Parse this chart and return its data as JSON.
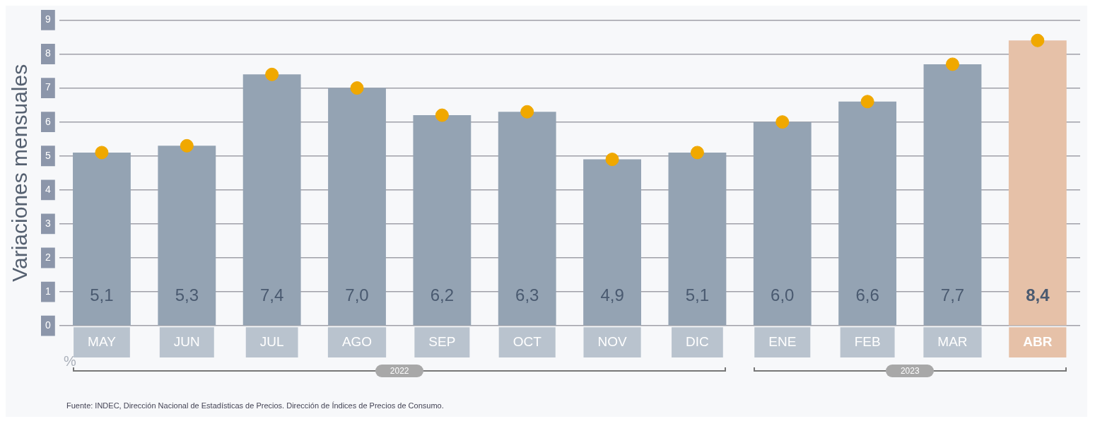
{
  "chart_data": {
    "type": "bar",
    "ylabel": "Variaciones mensuales",
    "categories": [
      "MAY",
      "JUN",
      "JUL",
      "AGO",
      "SEP",
      "OCT",
      "NOV",
      "DIC",
      "ENE",
      "FEB",
      "MAR",
      "ABR"
    ],
    "series": [
      {
        "values": [
          5.1,
          5.3,
          7.4,
          7.0,
          6.2,
          6.3,
          4.9,
          5.1,
          6.0,
          6.6,
          7.7,
          8.4
        ],
        "colors": [
          "#94a3b3",
          "#94a3b3",
          "#94a3b3",
          "#94a3b3",
          "#94a3b3",
          "#94a3b3",
          "#94a3b3",
          "#94a3b3",
          "#94a3b3",
          "#94a3b3",
          "#94a3b3",
          "#e6c1a8"
        ],
        "value_labels": [
          "5,1",
          "5,3",
          "7,4",
          "7,0",
          "6,2",
          "6,3",
          "4,9",
          "5,1",
          "6,0",
          "6,6",
          "7,7",
          "8,4"
        ]
      },
      {
        "type": "scatter",
        "color": "#f0a800",
        "x": [
          "MAY",
          "JUN",
          "JUL",
          "AGO",
          "SEP",
          "OCT",
          "NOV",
          "DIC",
          "ENE",
          "FEB",
          "MAR",
          "ABR"
        ],
        "values": [
          5.1,
          5.3,
          7.4,
          7.0,
          6.2,
          6.3,
          4.9,
          5.1,
          6.0,
          6.6,
          7.7,
          8.4
        ]
      }
    ],
    "ylim": [
      0,
      9
    ],
    "yticks": [
      0,
      1,
      2,
      3,
      4,
      5,
      6,
      7,
      8,
      9
    ],
    "grid": "y",
    "marker": "circle",
    "legend": false,
    "annotations": [
      "%",
      "2022",
      "2023",
      "Fuente: INDEC, Dirección Nacional de Estadísticas de Precios. Dirección de Índices de Precios de Consumo."
    ]
  }
}
